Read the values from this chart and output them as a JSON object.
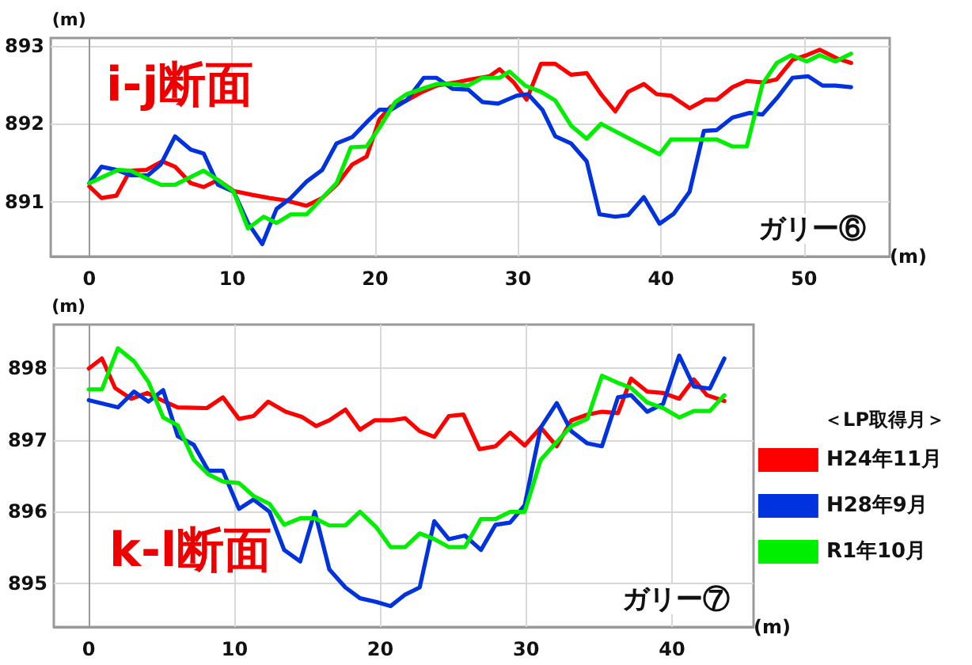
{
  "chart_data": [
    {
      "type": "line",
      "title": "i-j断面",
      "xlabel": "(m)",
      "ylabel": "(m)",
      "annotations": [
        "ガリー⑥"
      ],
      "xlim": [
        -2.7,
        56
      ],
      "xticks": [
        0,
        10,
        20,
        30,
        40,
        50
      ],
      "ylim": [
        890.3,
        893.1
      ],
      "yticks": [
        891,
        892,
        893
      ],
      "grid": true,
      "legend": false,
      "marker": "none",
      "line_style": "solid",
      "series": [
        {
          "color": "#ff0000",
          "x": [
            0,
            0.85,
            1.9,
            2.85,
            4,
            5.1,
            6,
            7.1,
            8,
            9,
            10.1,
            11.4,
            12.6,
            13.7,
            15.2,
            16.3,
            17.3,
            18.4,
            19.4,
            20.3,
            21.1,
            22.2,
            23.3,
            24.3,
            25.6,
            26.7,
            28,
            28.7,
            29.7,
            30.6,
            31.6,
            32.6,
            33.7,
            34.8,
            35.8,
            36.8,
            37.7,
            38.8,
            39.7,
            40.7,
            42,
            43.1,
            43.9,
            45,
            46,
            47.1,
            48.1,
            49.2,
            50.2,
            51.1,
            52.3,
            53.3
          ],
          "values": [
            891.2,
            891.05,
            891.08,
            891.4,
            891.41,
            891.52,
            891.45,
            891.24,
            891.19,
            891.28,
            891.14,
            891.09,
            891.05,
            891.02,
            890.95,
            891.05,
            891.22,
            891.48,
            891.58,
            892.06,
            892.22,
            892.3,
            892.41,
            892.49,
            892.53,
            892.57,
            892.61,
            892.7,
            892.53,
            892.31,
            892.77,
            892.77,
            892.63,
            892.65,
            892.38,
            892.16,
            892.41,
            892.51,
            892.38,
            892.36,
            892.2,
            892.31,
            892.31,
            892.47,
            892.55,
            892.53,
            892.57,
            892.82,
            892.88,
            892.95,
            892.84,
            892.78
          ]
        },
        {
          "color": "#0033dd",
          "x": [
            0,
            0.85,
            1.9,
            2.9,
            4.1,
            5,
            6,
            7.1,
            8,
            9,
            10.1,
            11.1,
            12.1,
            13.1,
            14.1,
            15.2,
            16.3,
            17.3,
            18.4,
            19.4,
            20.3,
            21.1,
            22.2,
            23.4,
            24.3,
            25.4,
            26.5,
            27.5,
            28.6,
            29.9,
            30.7,
            31.7,
            32.6,
            33.7,
            34.8,
            35.7,
            36.8,
            37.7,
            38.8,
            39.9,
            40.9,
            42,
            43,
            43.9,
            45,
            46.2,
            47.1,
            48.2,
            49.2,
            50.3,
            51.3,
            52.2,
            53.3
          ],
          "values": [
            891.24,
            891.45,
            891.41,
            891.34,
            891.34,
            891.48,
            891.84,
            891.67,
            891.62,
            891.22,
            891.13,
            890.73,
            890.46,
            890.91,
            891.05,
            891.26,
            891.41,
            891.75,
            891.83,
            892.02,
            892.18,
            892.18,
            892.3,
            892.59,
            892.59,
            892.45,
            892.44,
            892.28,
            892.26,
            892.36,
            892.38,
            892.18,
            891.84,
            891.75,
            891.52,
            890.84,
            890.81,
            890.83,
            891.06,
            890.72,
            890.85,
            891.13,
            891.91,
            891.92,
            892.08,
            892.14,
            892.12,
            892.35,
            892.59,
            892.61,
            892.49,
            892.49,
            892.47
          ]
        },
        {
          "color": "#00ee00",
          "x": [
            0,
            2,
            2.9,
            4,
            5,
            6,
            8,
            9,
            10.1,
            11.1,
            12.2,
            13.1,
            14.1,
            15.2,
            16.3,
            17.3,
            18.3,
            19.4,
            20.3,
            21.4,
            22.2,
            23.3,
            24.3,
            25.4,
            26.5,
            27.5,
            28.7,
            29.4,
            30.5,
            31.6,
            32.6,
            33.7,
            34.8,
            35.8,
            39.9,
            40.7,
            43.9,
            45,
            46,
            47.1,
            48.1,
            49.1,
            50.2,
            51.1,
            52.2,
            53.3
          ],
          "values": [
            891.24,
            891.41,
            891.4,
            891.3,
            891.22,
            891.22,
            891.4,
            891.28,
            891.13,
            890.66,
            890.81,
            890.73,
            890.84,
            890.84,
            891.05,
            891.24,
            891.7,
            891.71,
            891.95,
            892.28,
            892.38,
            892.45,
            892.51,
            892.51,
            892.49,
            892.59,
            892.59,
            892.67,
            892.49,
            892.41,
            892.3,
            891.98,
            891.81,
            892.0,
            891.61,
            891.8,
            891.8,
            891.71,
            891.71,
            892.51,
            892.78,
            892.88,
            892.8,
            892.88,
            892.8,
            892.9
          ]
        }
      ]
    },
    {
      "type": "line",
      "title": "k-l断面",
      "xlabel": "(m)",
      "ylabel": "(m)",
      "legend_title": "＜LP取得月＞",
      "annotations": [
        "ガリー⑦"
      ],
      "xlim": [
        -2.4,
        45.6
      ],
      "xticks": [
        0,
        10,
        20,
        30,
        40
      ],
      "ylim": [
        894.4,
        898.6
      ],
      "yticks": [
        895,
        896,
        897,
        898
      ],
      "grid": true,
      "legend": "right",
      "marker": "none",
      "line_style": "solid",
      "series": [
        {
          "name": "H24年11月",
          "color": "#ff0000",
          "x": [
            0,
            0.9,
            1.8,
            2.9,
            4,
            5,
            6.1,
            8.1,
            9.2,
            10.3,
            11.3,
            12.3,
            13.5,
            14.6,
            15.6,
            16.5,
            17.6,
            18.6,
            19.6,
            20.7,
            21.7,
            22.7,
            23.7,
            24.7,
            25.7,
            26.8,
            27.9,
            28.9,
            29.9,
            31,
            32.1,
            33.1,
            34.2,
            35.2,
            36.3,
            37.2,
            38.3,
            39.4,
            40.5,
            41.5,
            42.4,
            43.6
          ],
          "values": [
            897.99,
            898.13,
            897.72,
            897.57,
            897.65,
            897.55,
            897.45,
            897.44,
            897.59,
            897.29,
            897.33,
            897.53,
            897.39,
            897.32,
            897.19,
            897.27,
            897.42,
            897.14,
            897.27,
            897.27,
            897.3,
            897.12,
            897.04,
            897.33,
            897.35,
            896.87,
            896.91,
            897.1,
            896.92,
            897.17,
            896.91,
            897.27,
            897.35,
            897.39,
            897.37,
            897.85,
            897.67,
            897.65,
            897.57,
            897.84,
            897.62,
            897.54
          ]
        },
        {
          "name": "H28年9月",
          "color": "#0033dd",
          "x": [
            0,
            2,
            3.1,
            4.1,
            5.1,
            6.1,
            7.2,
            8.2,
            9.2,
            10.3,
            11.3,
            12.4,
            13.4,
            14.5,
            15.5,
            16.5,
            17.6,
            18.6,
            19.7,
            20.7,
            21.7,
            22.7,
            23.7,
            24.7,
            25.8,
            26.9,
            27.9,
            28.9,
            29.9,
            31,
            32.1,
            33.1,
            34.2,
            35.2,
            36.3,
            37.2,
            38.3,
            39.4,
            40.5,
            41.5,
            42.6,
            43.6
          ],
          "values": [
            897.55,
            897.45,
            897.67,
            897.53,
            897.69,
            897.05,
            896.93,
            896.57,
            896.57,
            896.04,
            896.17,
            896.0,
            895.47,
            895.31,
            896.0,
            895.2,
            894.95,
            894.8,
            894.75,
            894.69,
            894.85,
            894.95,
            895.87,
            895.62,
            895.67,
            895.47,
            895.82,
            895.85,
            896.09,
            897.17,
            897.51,
            897.12,
            896.95,
            896.91,
            897.59,
            897.62,
            897.39,
            897.5,
            898.17,
            897.74,
            897.71,
            898.13
          ]
        },
        {
          "name": "R1年10月",
          "color": "#00ee00",
          "x": [
            0,
            0.9,
            2,
            3.1,
            4.1,
            5.1,
            6.1,
            7.2,
            8.2,
            9.2,
            10.3,
            11.3,
            12.4,
            13.4,
            14.5,
            15.5,
            16.5,
            17.6,
            18.6,
            19.7,
            20.7,
            21.7,
            22.7,
            23.7,
            24.7,
            25.8,
            26.9,
            27.9,
            28.9,
            29.9,
            31,
            32.1,
            33.1,
            34.2,
            35.2,
            36.3,
            37.2,
            38.3,
            39.4,
            40.5,
            41.5,
            42.6,
            43.6
          ],
          "values": [
            897.7,
            897.7,
            898.27,
            898.09,
            897.8,
            897.31,
            897.2,
            896.72,
            896.52,
            896.42,
            896.4,
            896.22,
            896.11,
            895.82,
            895.91,
            895.91,
            895.81,
            895.81,
            896.0,
            895.79,
            895.51,
            895.51,
            895.7,
            895.62,
            895.51,
            895.51,
            895.9,
            895.9,
            896.0,
            896.0,
            896.72,
            896.97,
            897.19,
            897.29,
            897.89,
            897.79,
            897.72,
            897.52,
            897.44,
            897.31,
            897.4,
            897.4,
            897.62
          ]
        }
      ]
    }
  ]
}
